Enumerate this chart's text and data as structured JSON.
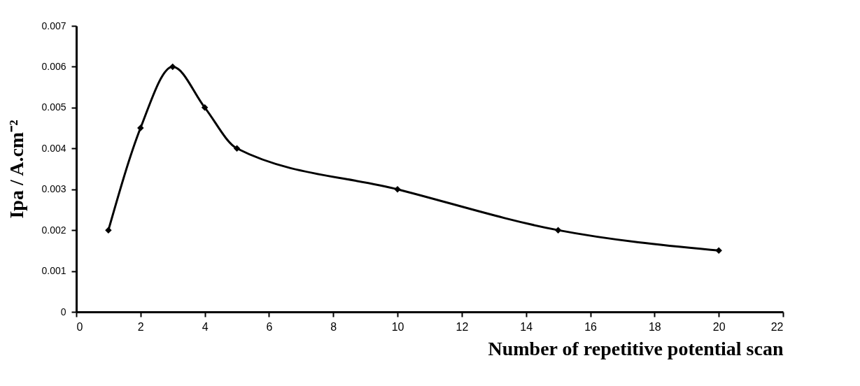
{
  "chart_data": {
    "type": "line",
    "xlabel": "Number of repetitive potential scan",
    "ylabel": "Ipa / A.cm⁻²",
    "x": [
      1,
      2,
      3,
      4,
      5,
      10,
      15,
      20
    ],
    "values": [
      0.002,
      0.0045,
      0.006,
      0.005,
      0.004,
      0.003,
      0.002,
      0.0015
    ],
    "color": "#000000",
    "marker": "diamond",
    "line_style": "solid",
    "grid": false,
    "xlim": [
      0,
      22
    ],
    "xticks": [
      0,
      2,
      4,
      6,
      8,
      10,
      12,
      14,
      16,
      18,
      20,
      22
    ],
    "ylim": [
      0,
      0.007
    ],
    "yticks": [
      0,
      0.001,
      0.002,
      0.003,
      0.004,
      0.005,
      0.006,
      0.007
    ]
  }
}
